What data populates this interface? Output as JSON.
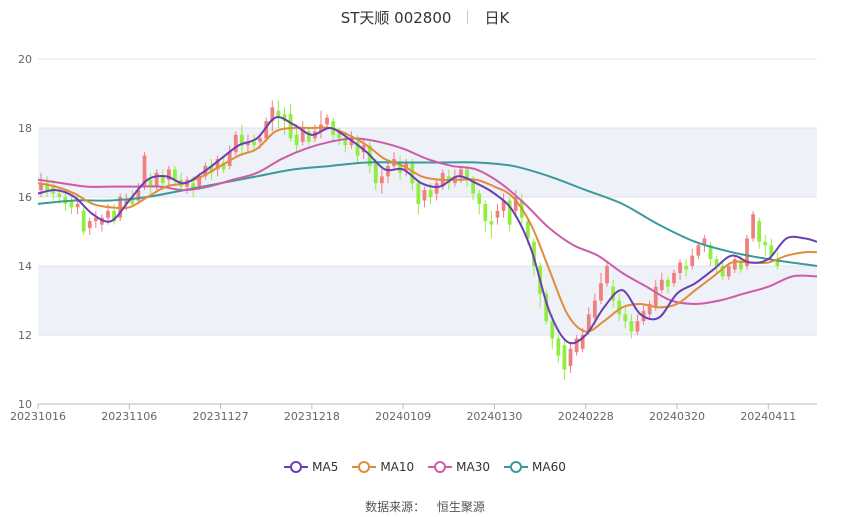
{
  "header": {
    "title": "ST天顺 002800",
    "period": "日K"
  },
  "footer": {
    "source_label": "数据来源：",
    "source_name": "恒生聚源"
  },
  "colors": {
    "up": "#f08080",
    "down": "#90ee40",
    "ma5": "#6a3fb0",
    "ma10": "#e08c3a",
    "ma30": "#d05aa8",
    "ma60": "#3a9a9a",
    "band": "#eef1f8",
    "grid": "#dde3ee"
  },
  "chart_data": {
    "type": "candlestick",
    "ylim": [
      10,
      20
    ],
    "yticks": [
      "10",
      "12",
      "14",
      "16",
      "18",
      "20"
    ],
    "xticks": [
      "20231016",
      "20231106",
      "20231127",
      "20231218",
      "20240109",
      "20240130",
      "20240228",
      "20240320",
      "20240411"
    ],
    "xtick_index": [
      0,
      15,
      30,
      45,
      60,
      75,
      90,
      105,
      120
    ],
    "series_names": [
      "MA5",
      "MA10",
      "MA30",
      "MA60"
    ],
    "ma": {
      "MA5": [
        [
          0,
          16.1
        ],
        [
          3,
          16.2
        ],
        [
          6,
          16.0
        ],
        [
          9,
          15.5
        ],
        [
          12,
          15.3
        ],
        [
          15,
          15.9
        ],
        [
          18,
          16.5
        ],
        [
          21,
          16.6
        ],
        [
          24,
          16.4
        ],
        [
          27,
          16.7
        ],
        [
          30,
          17.1
        ],
        [
          33,
          17.5
        ],
        [
          36,
          17.7
        ],
        [
          39,
          18.3
        ],
        [
          42,
          18.1
        ],
        [
          45,
          17.8
        ],
        [
          48,
          18.0
        ],
        [
          51,
          17.7
        ],
        [
          54,
          17.3
        ],
        [
          57,
          16.8
        ],
        [
          60,
          16.8
        ],
        [
          63,
          16.4
        ],
        [
          66,
          16.3
        ],
        [
          69,
          16.6
        ],
        [
          72,
          16.4
        ],
        [
          75,
          16.1
        ],
        [
          78,
          15.6
        ],
        [
          81,
          14.5
        ],
        [
          84,
          12.7
        ],
        [
          87,
          11.8
        ],
        [
          90,
          12.0
        ],
        [
          93,
          12.8
        ],
        [
          96,
          13.3
        ],
        [
          99,
          12.6
        ],
        [
          102,
          12.5
        ],
        [
          105,
          13.2
        ],
        [
          108,
          13.5
        ],
        [
          111,
          13.9
        ],
        [
          114,
          14.3
        ],
        [
          117,
          14.1
        ],
        [
          120,
          14.2
        ],
        [
          123,
          14.8
        ],
        [
          126,
          14.8
        ],
        [
          128,
          14.7
        ]
      ],
      "MA10": [
        [
          0,
          16.4
        ],
        [
          3,
          16.3
        ],
        [
          6,
          16.1
        ],
        [
          9,
          15.8
        ],
        [
          12,
          15.7
        ],
        [
          15,
          15.7
        ],
        [
          18,
          16.0
        ],
        [
          21,
          16.3
        ],
        [
          24,
          16.4
        ],
        [
          27,
          16.6
        ],
        [
          30,
          16.9
        ],
        [
          33,
          17.2
        ],
        [
          36,
          17.4
        ],
        [
          39,
          17.9
        ],
        [
          42,
          18.0
        ],
        [
          45,
          18.0
        ],
        [
          48,
          18.0
        ],
        [
          51,
          17.8
        ],
        [
          54,
          17.5
        ],
        [
          57,
          17.1
        ],
        [
          60,
          16.9
        ],
        [
          63,
          16.6
        ],
        [
          66,
          16.5
        ],
        [
          69,
          16.5
        ],
        [
          72,
          16.5
        ],
        [
          75,
          16.3
        ],
        [
          78,
          16.0
        ],
        [
          81,
          15.2
        ],
        [
          84,
          13.9
        ],
        [
          87,
          12.6
        ],
        [
          90,
          12.1
        ],
        [
          93,
          12.4
        ],
        [
          96,
          12.8
        ],
        [
          99,
          12.9
        ],
        [
          102,
          12.8
        ],
        [
          105,
          12.9
        ],
        [
          108,
          13.3
        ],
        [
          111,
          13.7
        ],
        [
          114,
          14.1
        ],
        [
          117,
          14.1
        ],
        [
          120,
          14.1
        ],
        [
          123,
          14.3
        ],
        [
          126,
          14.4
        ],
        [
          128,
          14.4
        ]
      ],
      "MA30": [
        [
          0,
          16.5
        ],
        [
          4,
          16.4
        ],
        [
          8,
          16.3
        ],
        [
          12,
          16.3
        ],
        [
          16,
          16.3
        ],
        [
          20,
          16.3
        ],
        [
          24,
          16.2
        ],
        [
          28,
          16.3
        ],
        [
          32,
          16.5
        ],
        [
          36,
          16.7
        ],
        [
          40,
          17.1
        ],
        [
          44,
          17.4
        ],
        [
          48,
          17.6
        ],
        [
          52,
          17.7
        ],
        [
          56,
          17.6
        ],
        [
          60,
          17.4
        ],
        [
          64,
          17.1
        ],
        [
          68,
          16.9
        ],
        [
          72,
          16.8
        ],
        [
          76,
          16.4
        ],
        [
          80,
          15.8
        ],
        [
          84,
          15.1
        ],
        [
          88,
          14.6
        ],
        [
          92,
          14.3
        ],
        [
          96,
          13.8
        ],
        [
          100,
          13.4
        ],
        [
          104,
          13.0
        ],
        [
          108,
          12.9
        ],
        [
          112,
          13.0
        ],
        [
          116,
          13.2
        ],
        [
          120,
          13.4
        ],
        [
          124,
          13.7
        ],
        [
          128,
          13.7
        ]
      ],
      "MA60": [
        [
          0,
          15.8
        ],
        [
          6,
          15.9
        ],
        [
          12,
          15.9
        ],
        [
          18,
          16.0
        ],
        [
          24,
          16.2
        ],
        [
          30,
          16.4
        ],
        [
          36,
          16.6
        ],
        [
          42,
          16.8
        ],
        [
          48,
          16.9
        ],
        [
          54,
          17.0
        ],
        [
          60,
          17.0
        ],
        [
          66,
          17.0
        ],
        [
          72,
          17.0
        ],
        [
          78,
          16.9
        ],
        [
          84,
          16.6
        ],
        [
          90,
          16.2
        ],
        [
          96,
          15.8
        ],
        [
          102,
          15.2
        ],
        [
          108,
          14.7
        ],
        [
          114,
          14.4
        ],
        [
          120,
          14.2
        ],
        [
          128,
          14.0
        ]
      ]
    },
    "candles": [
      [
        0,
        16.2,
        16.4,
        16.0,
        16.7
      ],
      [
        1,
        16.4,
        16.2,
        16.0,
        16.6
      ],
      [
        2,
        16.3,
        16.1,
        15.9,
        16.5
      ],
      [
        3,
        16.1,
        16.0,
        15.8,
        16.3
      ],
      [
        4,
        16.0,
        15.8,
        15.6,
        16.2
      ],
      [
        5,
        15.9,
        15.7,
        15.5,
        16.0
      ],
      [
        6,
        15.7,
        15.8,
        15.5,
        16.0
      ],
      [
        7,
        15.6,
        15.0,
        14.9,
        15.7
      ],
      [
        8,
        15.1,
        15.3,
        14.9,
        15.4
      ],
      [
        9,
        15.3,
        15.4,
        15.1,
        15.6
      ],
      [
        10,
        15.2,
        15.4,
        15.0,
        15.5
      ],
      [
        11,
        15.4,
        15.6,
        15.2,
        15.8
      ],
      [
        12,
        15.6,
        15.3,
        15.2,
        15.8
      ],
      [
        13,
        15.4,
        16.0,
        15.3,
        16.1
      ],
      [
        14,
        15.8,
        15.9,
        15.6,
        16.1
      ],
      [
        15,
        16.0,
        15.8,
        15.7,
        16.2
      ],
      [
        16,
        15.9,
        16.2,
        15.8,
        16.4
      ],
      [
        17,
        16.3,
        17.2,
        16.2,
        17.3
      ],
      [
        18,
        16.5,
        16.3,
        16.1,
        16.7
      ],
      [
        19,
        16.3,
        16.7,
        16.2,
        16.8
      ],
      [
        20,
        16.6,
        16.4,
        16.2,
        16.8
      ],
      [
        21,
        16.5,
        16.8,
        16.3,
        16.9
      ],
      [
        22,
        16.8,
        16.5,
        16.3,
        16.9
      ],
      [
        23,
        16.5,
        16.3,
        16.2,
        16.7
      ],
      [
        24,
        16.3,
        16.5,
        16.1,
        16.6
      ],
      [
        25,
        16.4,
        16.2,
        16.0,
        16.6
      ],
      [
        26,
        16.3,
        16.6,
        16.2,
        16.7
      ],
      [
        27,
        16.6,
        16.9,
        16.5,
        17.0
      ],
      [
        28,
        16.9,
        16.7,
        16.5,
        17.1
      ],
      [
        29,
        16.8,
        17.1,
        16.6,
        17.2
      ],
      [
        30,
        17.0,
        16.8,
        16.7,
        17.2
      ],
      [
        31,
        16.9,
        17.3,
        16.8,
        17.5
      ],
      [
        32,
        17.3,
        17.8,
        17.2,
        17.9
      ],
      [
        33,
        17.8,
        17.5,
        17.2,
        18.1
      ],
      [
        34,
        17.5,
        17.6,
        17.3,
        17.8
      ],
      [
        35,
        17.6,
        17.5,
        17.3,
        17.8
      ],
      [
        36,
        17.6,
        17.7,
        17.4,
        17.8
      ],
      [
        37,
        17.7,
        18.2,
        17.6,
        18.3
      ],
      [
        38,
        18.2,
        18.6,
        17.9,
        18.8
      ],
      [
        39,
        18.5,
        18.3,
        18.0,
        18.8
      ],
      [
        40,
        18.4,
        18.2,
        17.8,
        18.6
      ],
      [
        41,
        18.4,
        17.7,
        17.6,
        18.7
      ],
      [
        42,
        17.8,
        17.5,
        17.3,
        18.1
      ],
      [
        43,
        17.6,
        18.0,
        17.5,
        18.2
      ],
      [
        44,
        17.9,
        17.6,
        17.5,
        18.0
      ],
      [
        45,
        17.7,
        17.9,
        17.6,
        18.1
      ],
      [
        46,
        17.9,
        18.1,
        17.7,
        18.5
      ],
      [
        47,
        18.1,
        18.3,
        18.0,
        18.4
      ],
      [
        48,
        18.2,
        17.8,
        17.6,
        18.3
      ],
      [
        49,
        17.9,
        17.7,
        17.5,
        18.0
      ],
      [
        50,
        17.7,
        17.5,
        17.3,
        17.9
      ],
      [
        51,
        17.5,
        17.7,
        17.4,
        17.9
      ],
      [
        52,
        17.6,
        17.2,
        17.0,
        17.8
      ],
      [
        53,
        17.3,
        17.5,
        17.1,
        17.7
      ],
      [
        54,
        17.5,
        16.9,
        16.7,
        17.6
      ],
      [
        55,
        17.0,
        16.4,
        16.2,
        17.1
      ],
      [
        56,
        16.4,
        16.6,
        16.1,
        16.8
      ],
      [
        57,
        16.6,
        16.9,
        16.4,
        17.0
      ],
      [
        58,
        16.9,
        17.1,
        16.8,
        17.3
      ],
      [
        59,
        17.0,
        16.7,
        16.5,
        17.2
      ],
      [
        60,
        16.8,
        17.0,
        16.6,
        17.1
      ],
      [
        61,
        17.0,
        16.4,
        16.2,
        17.1
      ],
      [
        62,
        16.4,
        15.8,
        15.5,
        16.5
      ],
      [
        63,
        15.9,
        16.2,
        15.7,
        16.3
      ],
      [
        64,
        16.2,
        16.0,
        15.8,
        16.4
      ],
      [
        65,
        16.1,
        16.4,
        15.9,
        16.5
      ],
      [
        66,
        16.3,
        16.7,
        16.2,
        16.8
      ],
      [
        67,
        16.6,
        16.4,
        16.2,
        16.8
      ],
      [
        68,
        16.4,
        16.6,
        16.3,
        16.8
      ],
      [
        69,
        16.6,
        16.8,
        16.4,
        16.9
      ],
      [
        70,
        16.8,
        16.5,
        16.3,
        16.9
      ],
      [
        71,
        16.5,
        16.1,
        15.9,
        16.6
      ],
      [
        72,
        16.1,
        15.8,
        15.5,
        16.2
      ],
      [
        73,
        15.8,
        15.3,
        15.0,
        15.9
      ],
      [
        74,
        15.3,
        15.2,
        14.8,
        15.6
      ],
      [
        75,
        15.4,
        15.6,
        15.2,
        15.8
      ],
      [
        76,
        15.6,
        15.9,
        15.4,
        16.1
      ],
      [
        77,
        15.9,
        15.2,
        15.0,
        16.0
      ],
      [
        78,
        15.6,
        16.0,
        15.4,
        16.2
      ],
      [
        79,
        15.9,
        15.4,
        15.2,
        16.1
      ],
      [
        80,
        15.3,
        14.8,
        14.6,
        15.4
      ],
      [
        81,
        14.7,
        14.0,
        13.7,
        14.8
      ],
      [
        82,
        14.0,
        13.2,
        12.8,
        14.1
      ],
      [
        83,
        13.2,
        12.4,
        12.3,
        13.3
      ],
      [
        84,
        12.4,
        11.9,
        11.6,
        12.6
      ],
      [
        85,
        11.9,
        11.4,
        11.2,
        12.0
      ],
      [
        86,
        11.7,
        11.0,
        10.7,
        11.9
      ],
      [
        87,
        11.1,
        11.6,
        10.9,
        11.8
      ],
      [
        88,
        11.5,
        11.9,
        11.4,
        12.0
      ],
      [
        89,
        11.6,
        12.0,
        11.5,
        12.2
      ],
      [
        90,
        12.1,
        12.6,
        12.0,
        12.8
      ],
      [
        91,
        12.5,
        13.0,
        12.3,
        13.2
      ],
      [
        92,
        13.0,
        13.5,
        12.9,
        13.8
      ],
      [
        93,
        13.5,
        14.0,
        13.4,
        14.1
      ],
      [
        94,
        13.4,
        13.0,
        12.8,
        13.6
      ],
      [
        95,
        13.0,
        12.6,
        12.4,
        13.2
      ],
      [
        96,
        12.6,
        12.4,
        12.2,
        12.8
      ],
      [
        97,
        12.4,
        12.1,
        11.9,
        12.6
      ],
      [
        98,
        12.1,
        12.4,
        12.0,
        12.6
      ],
      [
        99,
        12.4,
        12.7,
        12.3,
        12.9
      ],
      [
        100,
        12.6,
        12.9,
        12.5,
        13.0
      ],
      [
        101,
        12.8,
        13.4,
        12.7,
        13.6
      ],
      [
        102,
        13.3,
        13.6,
        13.2,
        13.8
      ],
      [
        103,
        13.6,
        13.4,
        13.2,
        13.7
      ],
      [
        104,
        13.5,
        13.8,
        13.4,
        13.9
      ],
      [
        105,
        13.8,
        14.1,
        13.6,
        14.2
      ],
      [
        106,
        14.0,
        13.9,
        13.7,
        14.2
      ],
      [
        107,
        14.0,
        14.3,
        13.9,
        14.5
      ],
      [
        108,
        14.3,
        14.6,
        14.2,
        14.7
      ],
      [
        109,
        14.6,
        14.8,
        14.4,
        14.9
      ],
      [
        110,
        14.6,
        14.2,
        14.0,
        14.7
      ],
      [
        111,
        14.2,
        14.0,
        13.8,
        14.3
      ],
      [
        112,
        14.0,
        13.7,
        13.6,
        14.1
      ],
      [
        113,
        13.7,
        14.0,
        13.6,
        14.1
      ],
      [
        114,
        13.9,
        14.2,
        13.8,
        14.3
      ],
      [
        115,
        14.1,
        13.9,
        13.8,
        14.3
      ],
      [
        116,
        14.0,
        14.8,
        13.9,
        14.9
      ],
      [
        117,
        14.8,
        15.5,
        14.7,
        15.6
      ],
      [
        118,
        15.3,
        14.7,
        14.5,
        15.4
      ],
      [
        119,
        14.7,
        14.6,
        14.3,
        14.9
      ],
      [
        120,
        14.6,
        14.3,
        14.1,
        14.8
      ],
      [
        121,
        14.2,
        14.0,
        13.9,
        14.4
      ]
    ]
  }
}
